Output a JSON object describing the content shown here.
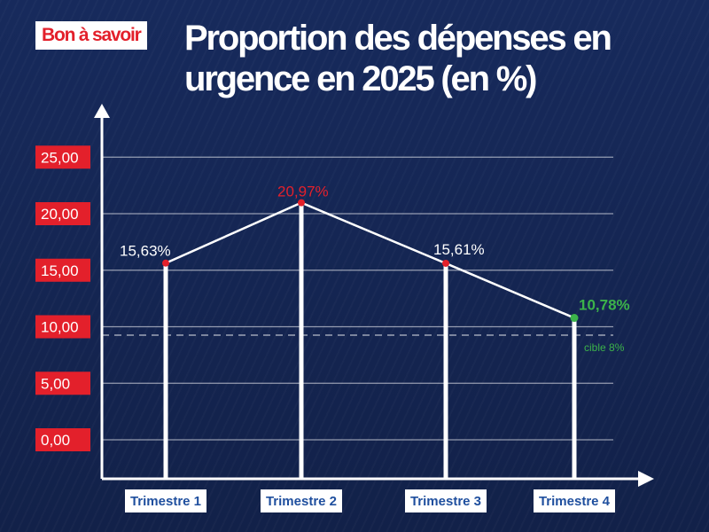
{
  "badge": "Bon à savoir",
  "title_line1": "Proportion des dépenses en",
  "title_line2": "urgence en 2025 (en %)",
  "chart_data": {
    "type": "line",
    "categories": [
      "Trimestre 1",
      "Trimestre 2",
      "Trimestre 3",
      "Trimestre 4"
    ],
    "values": [
      15.63,
      20.97,
      15.61,
      10.78
    ],
    "value_labels": [
      "15,63%",
      "20,97%",
      "15,61%",
      "10,78%"
    ],
    "y_ticks": [
      0,
      5,
      10,
      15,
      20,
      25
    ],
    "y_tick_labels": [
      "0,00",
      "5,00",
      "10,00",
      "15,00",
      "20,00",
      "25,00"
    ],
    "ylim": [
      0,
      25
    ],
    "grid": true,
    "target": {
      "value": 8,
      "label": "cible 8%"
    }
  },
  "colors": {
    "background": "#14244f",
    "accent_red": "#e3202b",
    "highlight_green": "#3cb34a",
    "line": "#ffffff",
    "category_text": "#1f4f9e"
  }
}
